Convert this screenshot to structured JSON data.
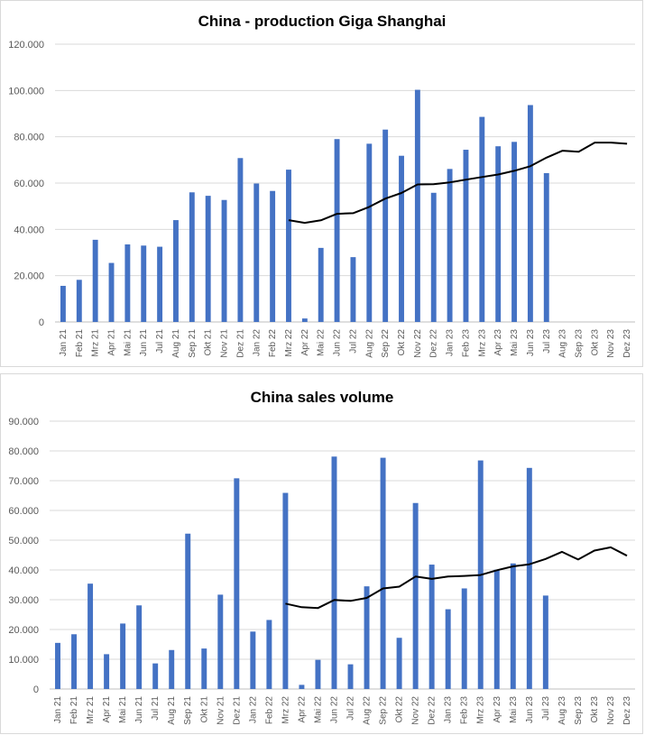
{
  "colors": {
    "bar": "#4472c4",
    "line": "#000000"
  },
  "chart_data": [
    {
      "type": "bar",
      "title": "China - production Giga Shanghai",
      "xlabel": "",
      "ylabel": "",
      "ylim": [
        0,
        120000
      ],
      "yticks": [
        0,
        20000,
        40000,
        60000,
        80000,
        100000,
        120000
      ],
      "ytick_labels": [
        "0",
        "20.000",
        "40.000",
        "60.000",
        "80.000",
        "100.000",
        "120.000"
      ],
      "grid": true,
      "categories": [
        "Jan 21",
        "Feb 21",
        "Mrz 21",
        "Apr 21",
        "Mai 21",
        "Jun 21",
        "Jul 21",
        "Aug 21",
        "Sep 21",
        "Okt 21",
        "Nov 21",
        "Dez 21",
        "Jan 22",
        "Feb 22",
        "Mrz 22",
        "Apr 22",
        "Mai 22",
        "Jun 22",
        "Jul 22",
        "Aug 22",
        "Sep 22",
        "Okt 22",
        "Nov 22",
        "Dez 22",
        "Jan 23",
        "Feb 23",
        "Mrz 23",
        "Apr 23",
        "Mai 23",
        "Jun 23",
        "Jul 23",
        "Aug 23",
        "Sep 23",
        "Okt 23",
        "Nov 23",
        "Dez 23"
      ],
      "series": [
        {
          "name": "production",
          "type": "bar",
          "values": [
            15600,
            18200,
            35500,
            25500,
            33500,
            33000,
            32500,
            44000,
            56000,
            54500,
            52700,
            70800,
            59800,
            56600,
            65800,
            1500,
            32000,
            79000,
            28000,
            77000,
            83100,
            71800,
            100300,
            55800,
            66100,
            74400,
            88600,
            75900,
            77800,
            93700,
            64300,
            null,
            null,
            null,
            null,
            null
          ]
        },
        {
          "name": "trend",
          "type": "line",
          "values": [
            null,
            null,
            null,
            null,
            null,
            null,
            null,
            null,
            null,
            null,
            null,
            null,
            null,
            null,
            44000,
            42800,
            43900,
            46700,
            47000,
            49700,
            53300,
            55700,
            59400,
            59500,
            60300,
            61500,
            62600,
            63700,
            65300,
            67300,
            71000,
            74000,
            73500,
            77500,
            77500,
            77000
          ]
        }
      ]
    },
    {
      "type": "bar",
      "title": "China sales volume",
      "xlabel": "",
      "ylabel": "",
      "ylim": [
        0,
        90000
      ],
      "yticks": [
        0,
        10000,
        20000,
        30000,
        40000,
        50000,
        60000,
        70000,
        80000,
        90000
      ],
      "ytick_labels": [
        "0",
        "10.000",
        "20.000",
        "30.000",
        "40.000",
        "50.000",
        "60.000",
        "70.000",
        "80.000",
        "90.000"
      ],
      "grid": true,
      "categories": [
        "Jan 21",
        "Feb 21",
        "Mrz 21",
        "Apr 21",
        "Mai 21",
        "Jun 21",
        "Jul 21",
        "Aug 21",
        "Sep 21",
        "Okt 21",
        "Nov 21",
        "Dez 21",
        "Jan 22",
        "Feb 22",
        "Mrz 22",
        "Apr 22",
        "Mai 22",
        "Jun 22",
        "Jul 22",
        "Aug 22",
        "Sep 22",
        "Okt 22",
        "Nov 22",
        "Dez 22",
        "Jan 23",
        "Feb 23",
        "Mrz 23",
        "Apr 23",
        "Mai 23",
        "Jun 23",
        "Jul 23",
        "Aug 23",
        "Sep 23",
        "Okt 23",
        "Nov 23",
        "Dez 23"
      ],
      "series": [
        {
          "name": "sales",
          "type": "bar",
          "values": [
            15500,
            18400,
            35400,
            11700,
            22000,
            28100,
            8600,
            13100,
            52200,
            13600,
            31700,
            70800,
            19300,
            23200,
            65900,
            1400,
            9800,
            78100,
            8300,
            34500,
            77700,
            17200,
            62500,
            41800,
            26800,
            33800,
            76800,
            40100,
            42200,
            74300,
            31400,
            null,
            null,
            null,
            null,
            null
          ]
        },
        {
          "name": "trend",
          "type": "line",
          "values": [
            null,
            null,
            null,
            null,
            null,
            null,
            null,
            null,
            null,
            null,
            null,
            null,
            null,
            null,
            28700,
            27500,
            27200,
            29900,
            29600,
            30600,
            33800,
            34400,
            37800,
            37000,
            37800,
            38000,
            38300,
            39900,
            41200,
            41900,
            43700,
            46100,
            43500,
            46500,
            47600,
            44800
          ]
        }
      ]
    }
  ]
}
